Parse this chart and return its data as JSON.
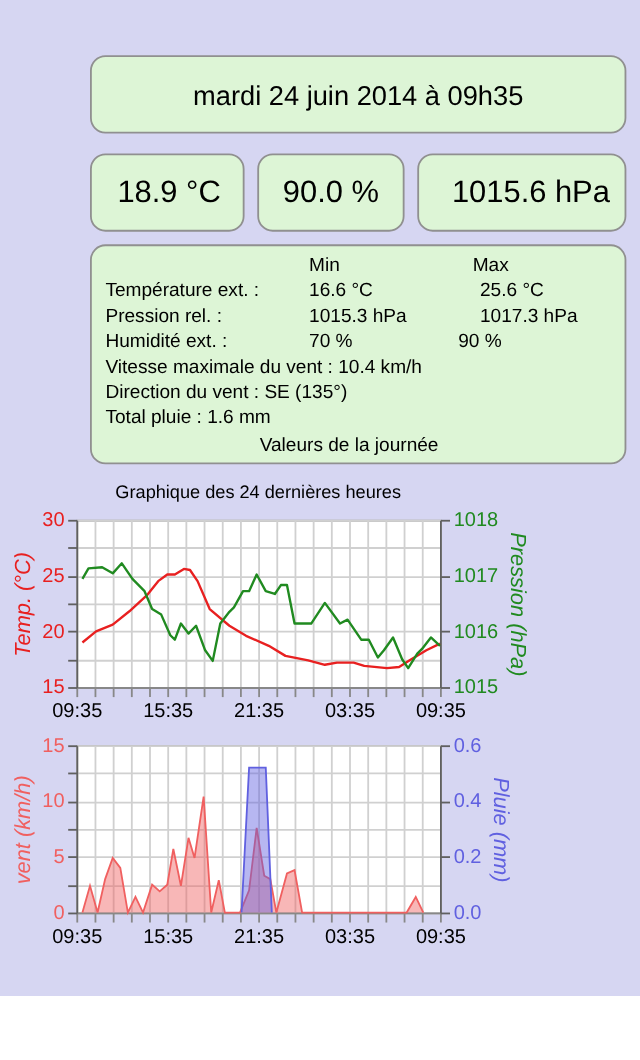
{
  "chart_data": [
    {
      "type": "other",
      "title": "mardi 24 juin 2014 à 09h35",
      "annotations": [
        "18.9 °C",
        "90.0 %",
        "1015.6 hPa",
        "Min",
        "Max",
        "Température ext. :",
        "16.6 °C",
        "25.6 °C",
        "Pression rel. :",
        "1015.3 hPa",
        "1017.3 hPa",
        "Humidité ext. :",
        "70 %",
        "90 %",
        "Vitesse maximale du vent : 10.4 km/h",
        "Direction du vent : SE (135°)",
        "Total pluie : 1.6 mm",
        "Valeurs de la journée"
      ]
    },
    {
      "type": "line",
      "title": "Graphique des 24 dernières heures",
      "ylabel": "Temp. (°C)",
      "y2label": "Pression (hPa)",
      "grid": true,
      "xlim": [
        "2014-06-23T09:35",
        "2014-06-24T09:35"
      ],
      "xticks": [
        {
          "value": "2014-06-23T09:35",
          "label": "09:35"
        },
        {
          "value": "2014-06-23T10:47",
          "label": null
        },
        {
          "value": "2014-06-23T11:59",
          "label": null
        },
        {
          "value": "2014-06-23T13:11",
          "label": null
        },
        {
          "value": "2014-06-23T14:23",
          "label": null
        },
        {
          "value": "2014-06-23T15:35",
          "label": "15:35"
        },
        {
          "value": "2014-06-23T16:47",
          "label": null
        },
        {
          "value": "2014-06-23T17:59",
          "label": null
        },
        {
          "value": "2014-06-23T19:11",
          "label": null
        },
        {
          "value": "2014-06-23T20:23",
          "label": null
        },
        {
          "value": "2014-06-23T21:35",
          "label": "21:35"
        },
        {
          "value": "2014-06-23T22:47",
          "label": null
        },
        {
          "value": "2014-06-23T23:59",
          "label": null
        },
        {
          "value": "2014-06-24T01:11",
          "label": null
        },
        {
          "value": "2014-06-24T02:23",
          "label": null
        },
        {
          "value": "2014-06-24T03:35",
          "label": "03:35"
        },
        {
          "value": "2014-06-24T04:47",
          "label": null
        },
        {
          "value": "2014-06-24T05:59",
          "label": null
        },
        {
          "value": "2014-06-24T07:11",
          "label": null
        },
        {
          "value": "2014-06-24T08:23",
          "label": null
        },
        {
          "value": "2014-06-24T09:35",
          "label": "09:35"
        }
      ],
      "ylim": [
        15,
        30
      ],
      "yticks": [
        15,
        {
          "value": 17.5,
          "label": null
        },
        20,
        {
          "value": 22.5,
          "label": null
        },
        25,
        {
          "value": 27.5,
          "label": null
        },
        30
      ],
      "y2lim": [
        1015,
        1018
      ],
      "y2ticks": [
        1015,
        1016,
        1017,
        1018
      ],
      "series": [
        {
          "color": "#e82020",
          "x": [
            "2014-06-23T09:59",
            "2014-06-23T10:53",
            "2014-06-23T11:59",
            "2014-06-23T13:05",
            "2014-06-23T14:17",
            "2014-06-23T14:59",
            "2014-06-23T15:35",
            "2014-06-23T16:05",
            "2014-06-23T16:41",
            "2014-06-23T17:05",
            "2014-06-23T17:35",
            "2014-06-23T18:23",
            "2014-06-23T19:41",
            "2014-06-23T20:47",
            "2014-06-23T22:17",
            "2014-06-23T23:23",
            "2014-06-24T00:53",
            "2014-06-24T01:59",
            "2014-06-24T02:47",
            "2014-06-24T03:53",
            "2014-06-24T04:35",
            "2014-06-24T06:05",
            "2014-06-24T06:53",
            "2014-06-24T07:35",
            "2014-06-24T08:41",
            "2014-06-24T09:35"
          ],
          "values": [
            19.0,
            20.0,
            20.6,
            21.8,
            23.3,
            24.5,
            25.1,
            25.1,
            25.6,
            25.5,
            24.5,
            22.0,
            20.5,
            19.6,
            18.7,
            17.8,
            17.4,
            17.0,
            17.2,
            17.2,
            16.9,
            16.7,
            16.8,
            17.4,
            18.3,
            18.9
          ]
        },
        {
          "color": "#208a20",
          "axis": "y2",
          "x": [
            "2014-06-23T09:59",
            "2014-06-23T10:23",
            "2014-06-23T11:17",
            "2014-06-23T11:59",
            "2014-06-23T12:35",
            "2014-06-23T13:17",
            "2014-06-23T14:05",
            "2014-06-23T14:35",
            "2014-06-23T15:11",
            "2014-06-23T15:47",
            "2014-06-23T16:05",
            "2014-06-23T16:29",
            "2014-06-23T16:59",
            "2014-06-23T17:29",
            "2014-06-23T18:05",
            "2014-06-23T18:35",
            "2014-06-23T19:05",
            "2014-06-23T19:41",
            "2014-06-23T19:59",
            "2014-06-23T20:35",
            "2014-06-23T20:59",
            "2014-06-23T21:29",
            "2014-06-23T22:05",
            "2014-06-23T22:41",
            "2014-06-23T23:05",
            "2014-06-23T23:29",
            "2014-06-23T23:59",
            "2014-06-24T01:05",
            "2014-06-24T01:59",
            "2014-06-24T02:59",
            "2014-06-24T03:29",
            "2014-06-24T04:23",
            "2014-06-24T04:53",
            "2014-06-24T05:29",
            "2014-06-24T05:53",
            "2014-06-24T06:29",
            "2014-06-24T07:05",
            "2014-06-24T07:29",
            "2014-06-24T08:05",
            "2014-06-24T08:23",
            "2014-06-24T08:59",
            "2014-06-24T09:35"
          ],
          "values": [
            1016.94,
            1017.13,
            1017.15,
            1017.04,
            1017.22,
            1016.94,
            1016.72,
            1016.4,
            1016.3,
            1015.93,
            1015.85,
            1016.14,
            1015.96,
            1016.1,
            1015.66,
            1015.47,
            1016.14,
            1016.35,
            1016.43,
            1016.72,
            1016.72,
            1017.02,
            1016.72,
            1016.67,
            1016.83,
            1016.83,
            1016.14,
            1016.14,
            1016.51,
            1016.14,
            1016.21,
            1015.85,
            1015.85,
            1015.53,
            1015.66,
            1015.89,
            1015.5,
            1015.34,
            1015.6,
            1015.68,
            1015.89,
            1015.74
          ]
        }
      ]
    },
    {
      "type": "area",
      "ylabel": "vent (km/h)",
      "y2label": "Pluie (mm)",
      "grid": true,
      "xlim": [
        "2014-06-23T09:35",
        "2014-06-24T09:35"
      ],
      "xticks": [
        {
          "value": "2014-06-23T09:35",
          "label": "09:35"
        },
        {
          "value": "2014-06-23T10:47",
          "label": null
        },
        {
          "value": "2014-06-23T11:59",
          "label": null
        },
        {
          "value": "2014-06-23T13:11",
          "label": null
        },
        {
          "value": "2014-06-23T14:23",
          "label": null
        },
        {
          "value": "2014-06-23T15:35",
          "label": "15:35"
        },
        {
          "value": "2014-06-23T16:47",
          "label": null
        },
        {
          "value": "2014-06-23T17:59",
          "label": null
        },
        {
          "value": "2014-06-23T19:11",
          "label": null
        },
        {
          "value": "2014-06-23T20:23",
          "label": null
        },
        {
          "value": "2014-06-23T21:35",
          "label": "21:35"
        },
        {
          "value": "2014-06-23T22:47",
          "label": null
        },
        {
          "value": "2014-06-23T23:59",
          "label": null
        },
        {
          "value": "2014-06-24T01:11",
          "label": null
        },
        {
          "value": "2014-06-24T02:23",
          "label": null
        },
        {
          "value": "2014-06-24T03:35",
          "label": "03:35"
        },
        {
          "value": "2014-06-24T04:47",
          "label": null
        },
        {
          "value": "2014-06-24T05:59",
          "label": null
        },
        {
          "value": "2014-06-24T07:11",
          "label": null
        },
        {
          "value": "2014-06-24T08:23",
          "label": null
        },
        {
          "value": "2014-06-24T09:35",
          "label": "09:35"
        }
      ],
      "ylim": [
        0,
        15
      ],
      "yticks": [
        0,
        {
          "value": 2.5,
          "label": null
        },
        5,
        {
          "value": 7.5,
          "label": null
        },
        10,
        {
          "value": 12.5,
          "label": null
        },
        15
      ],
      "y2lim": [
        0,
        0.6
      ],
      "y2ticks": [
        {
          "value": 0,
          "label": "0.0"
        },
        0.2,
        0.4,
        0.6
      ],
      "series": [
        {
          "color": "#f06060",
          "x": [
            "2014-06-23T09:59",
            "2014-06-23T10:29",
            "2014-06-23T10:59",
            "2014-06-23T11:29",
            "2014-06-23T11:59",
            "2014-06-23T12:29",
            "2014-06-23T12:59",
            "2014-06-23T13:29",
            "2014-06-23T13:59",
            "2014-06-23T14:35",
            "2014-06-23T15:05",
            "2014-06-23T15:35",
            "2014-06-23T15:59",
            "2014-06-23T16:29",
            "2014-06-23T16:59",
            "2014-06-23T17:23",
            "2014-06-23T17:59",
            "2014-06-23T18:29",
            "2014-06-23T18:59",
            "2014-06-23T19:23",
            "2014-06-23T20:23",
            "2014-06-23T20:59",
            "2014-06-23T21:29",
            "2014-06-23T21:59",
            "2014-06-23T22:23",
            "2014-06-23T22:47",
            "2014-06-23T23:29",
            "2014-06-23T23:59",
            "2014-06-24T00:29",
            "2014-06-24T07:23",
            "2014-06-24T07:59",
            "2014-06-24T08:29"
          ],
          "values": [
            0,
            2.4,
            0,
            3.0,
            4.9,
            4.0,
            0,
            1.4,
            0,
            2.5,
            1.9,
            2.5,
            5.7,
            2.4,
            6.7,
            4.9,
            10.4,
            0,
            2.9,
            0,
            0,
            2.0,
            7.6,
            3.3,
            3.0,
            0,
            3.5,
            3.8,
            0,
            0,
            1.4,
            0
          ]
        },
        {
          "color": "#6060e0",
          "axis": "y2",
          "x": [
            "2014-06-23T20:29",
            "2014-06-23T20:59",
            "2014-06-23T22:05",
            "2014-06-23T22:29"
          ],
          "values": [
            0,
            0.52,
            0.52,
            0
          ]
        }
      ]
    }
  ]
}
